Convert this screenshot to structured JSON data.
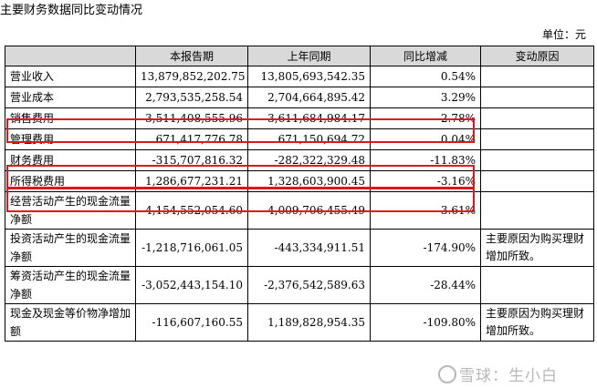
{
  "title": "主要财务数据同比变动情况",
  "unit": "单位：元",
  "headers": [
    "",
    "本报告期",
    "上年同期",
    "同比增减",
    "变动原因"
  ],
  "rows": [
    {
      "label": "营业收入",
      "current": "13,879,852,202.75",
      "prior": "13,805,693,542.35",
      "change": "0.54%",
      "reason": ""
    },
    {
      "label": "营业成本",
      "current": "2,793,535,258.54",
      "prior": "2,704,664,895.42",
      "change": "3.29%",
      "reason": ""
    },
    {
      "label": "销售费用",
      "current": "3,511,408,555.96",
      "prior": "3,611,684,984.17",
      "change": "-2.78%",
      "reason": ""
    },
    {
      "label": "管理费用",
      "current": "671,417,776.78",
      "prior": "671,150,694.72",
      "change": "0.04%",
      "reason": ""
    },
    {
      "label": "财务费用",
      "current": "-315,707,816.32",
      "prior": "-282,322,329.48",
      "change": "-11.83%",
      "reason": ""
    },
    {
      "label": "所得税费用",
      "current": "1,286,677,231.21",
      "prior": "1,328,603,900.45",
      "change": "-3.16%",
      "reason": ""
    },
    {
      "label": "经营活动产生的现金流量净额",
      "current": "4,154,552,054.60",
      "prior": "4,009,706,455.49",
      "change": "3.61%",
      "reason": ""
    },
    {
      "label": "投资活动产生的现金流量净额",
      "current": "-1,218,716,061.05",
      "prior": "-443,334,911.51",
      "change": "-174.90%",
      "reason": "主要原因为购买理财增加所致。"
    },
    {
      "label": "筹资活动产生的现金流量净额",
      "current": "-3,052,443,154.10",
      "prior": "-2,376,542,589.63",
      "change": "-28.44%",
      "reason": ""
    },
    {
      "label": "现金及现金等价物净增加额",
      "current": "-116,607,160.55",
      "prior": "1,189,828,954.35",
      "change": "-109.80%",
      "reason": "主要原因为购买理财增加所致。"
    }
  ],
  "watermark": "雪球：生小白",
  "highlight_color": "#e0161e",
  "header_bg": "#d9d9d9"
}
